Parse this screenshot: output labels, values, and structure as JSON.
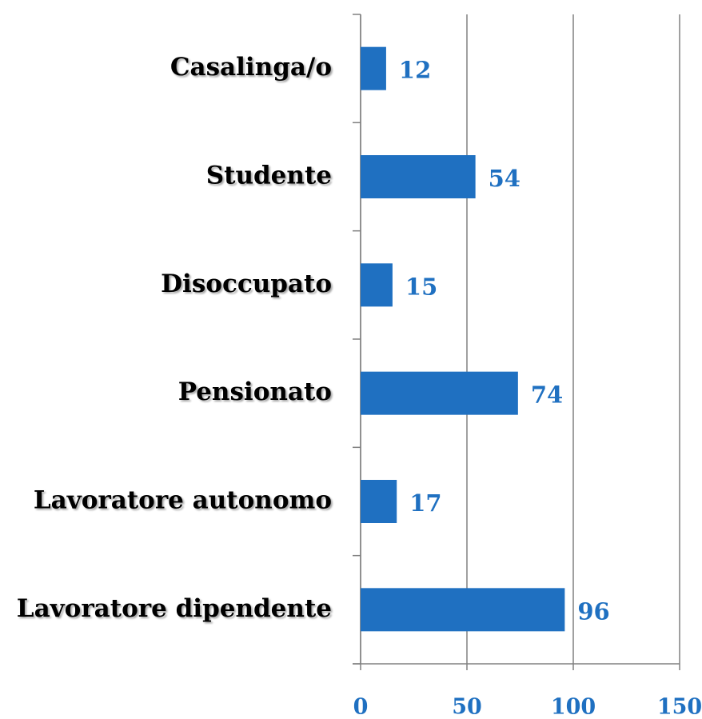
{
  "chart_data": {
    "type": "bar",
    "orientation": "horizontal",
    "categories": [
      "Casalinga/o",
      "Studente",
      "Disoccupato",
      "Pensionato",
      "Lavoratore autonomo",
      "Lavoratore dipendente"
    ],
    "values": [
      12,
      54,
      15,
      74,
      17,
      96
    ],
    "color": "#1f70c1",
    "xlim": [
      0,
      150
    ],
    "xticks": [
      0,
      50,
      100,
      150
    ],
    "grid": true
  }
}
